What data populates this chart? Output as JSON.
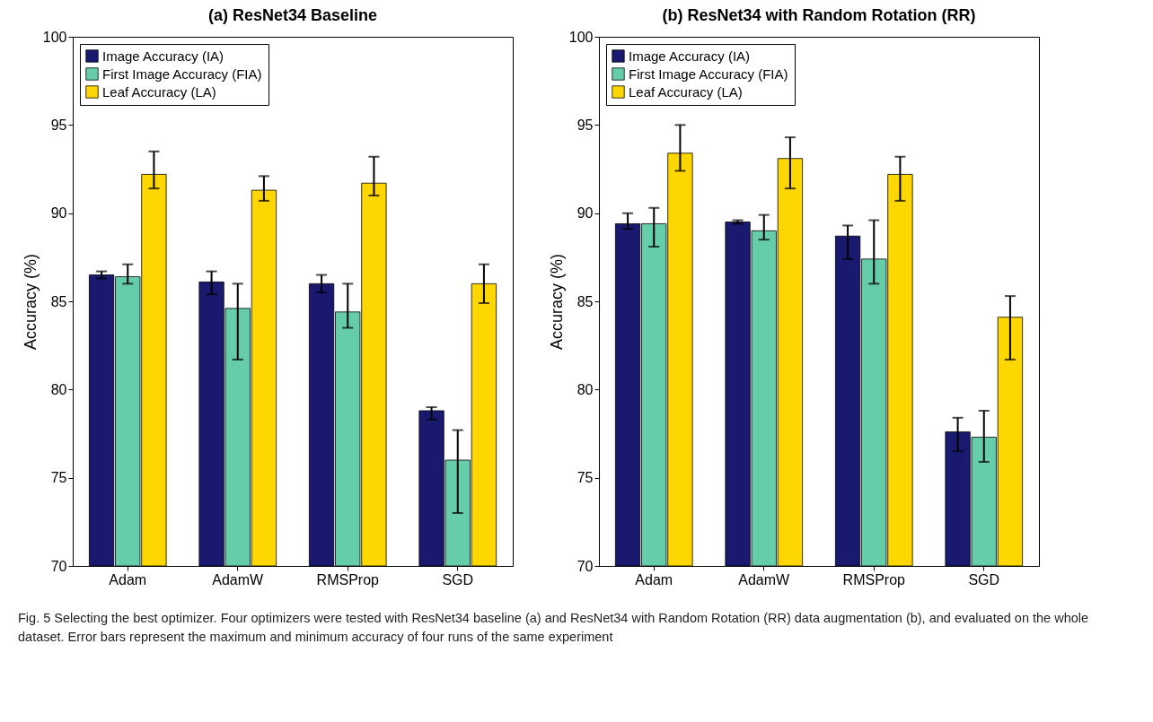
{
  "chart_data": [
    {
      "type": "bar",
      "title": "(a) ResNet34 Baseline",
      "ylabel": "Accuracy (%)",
      "categories": [
        "Adam",
        "AdamW",
        "RMSProp",
        "SGD"
      ],
      "ylim": [
        70,
        100
      ],
      "yticks": [
        70,
        75,
        80,
        85,
        90,
        95,
        100
      ],
      "legend": "top left",
      "grid": false,
      "series": [
        {
          "name": "Image Accuracy (IA)",
          "color": "#191970",
          "values": [
            86.5,
            86.1,
            86.0,
            78.8
          ],
          "errors": [
            [
              86.3,
              86.7
            ],
            [
              85.4,
              86.7
            ],
            [
              85.5,
              86.5
            ],
            [
              78.3,
              79.0
            ]
          ]
        },
        {
          "name": "First Image Accuracy (FIA)",
          "color": "#66cdaa",
          "values": [
            86.4,
            84.6,
            84.4,
            76.0
          ],
          "errors": [
            [
              86.0,
              87.1
            ],
            [
              81.7,
              86.0
            ],
            [
              83.5,
              86.0
            ],
            [
              73.0,
              77.7
            ]
          ]
        },
        {
          "name": "Leaf Accuracy (LA)",
          "color": "#ffd700",
          "values": [
            92.2,
            91.3,
            91.7,
            86.0
          ],
          "errors": [
            [
              91.4,
              93.5
            ],
            [
              90.7,
              92.1
            ],
            [
              91.0,
              93.2
            ],
            [
              84.9,
              87.1
            ]
          ]
        }
      ],
      "annotations": [
        "Fig. 5  Selecting the best optimizer. Four optimizers were tested with ResNet34 baseline (a) and ResNet34 with Random Rotation (RR) data augmentation (b), and evaluated on the whole dataset. Error bars represent the maximum and minimum accuracy of four runs of the same experiment"
      ]
    },
    {
      "type": "bar",
      "title": "(b) ResNet34 with Random Rotation (RR)",
      "ylabel": "Accuracy (%)",
      "categories": [
        "Adam",
        "AdamW",
        "RMSProp",
        "SGD"
      ],
      "ylim": [
        70,
        100
      ],
      "yticks": [
        70,
        75,
        80,
        85,
        90,
        95,
        100
      ],
      "legend": "top left",
      "grid": false,
      "series": [
        {
          "name": "Image Accuracy (IA)",
          "color": "#191970",
          "values": [
            89.4,
            89.5,
            88.7,
            77.6
          ],
          "errors": [
            [
              89.1,
              90.0
            ],
            [
              89.4,
              89.6
            ],
            [
              87.4,
              89.3
            ],
            [
              76.5,
              78.4
            ]
          ]
        },
        {
          "name": "First Image Accuracy (FIA)",
          "color": "#66cdaa",
          "values": [
            89.4,
            89.0,
            87.4,
            77.3
          ],
          "errors": [
            [
              88.1,
              90.3
            ],
            [
              88.5,
              89.9
            ],
            [
              86.0,
              89.6
            ],
            [
              75.9,
              78.8
            ]
          ]
        },
        {
          "name": "Leaf Accuracy (LA)",
          "color": "#ffd700",
          "values": [
            93.4,
            93.1,
            92.2,
            84.1
          ],
          "errors": [
            [
              92.4,
              95.0
            ],
            [
              91.4,
              94.3
            ],
            [
              90.7,
              93.2
            ],
            [
              81.7,
              85.3
            ]
          ]
        }
      ]
    }
  ]
}
